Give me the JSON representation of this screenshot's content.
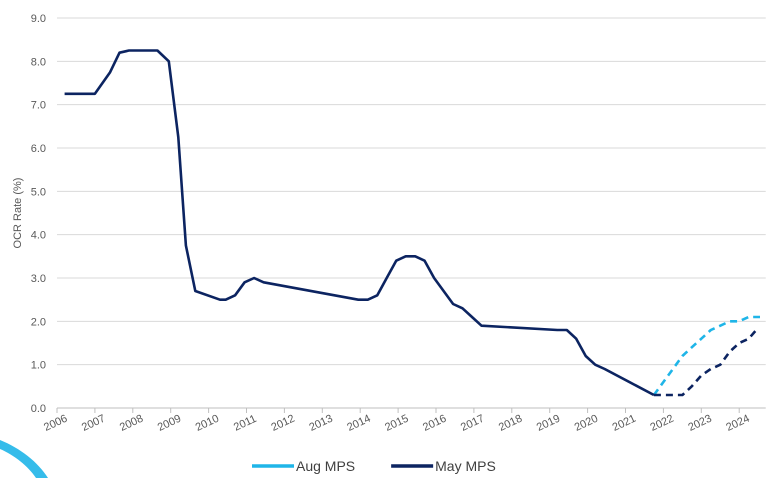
{
  "chart_data": {
    "type": "line",
    "y_label": "OCR Rate (%)",
    "xlim": [
      2006,
      2024.7
    ],
    "xticks": [
      2006,
      2007,
      2008,
      2009,
      2010,
      2011,
      2012,
      2013,
      2014,
      2015,
      2016,
      2017,
      2018,
      2019,
      2020,
      2021,
      2022,
      2023,
      2024
    ],
    "ylim": [
      0,
      9
    ],
    "yticks": [
      {
        "value": 0,
        "label": "0.0"
      },
      {
        "value": 1,
        "label": "1.0"
      },
      {
        "value": 2,
        "label": "2.0"
      },
      {
        "value": 3,
        "label": "3.0"
      },
      {
        "value": 4,
        "label": "4.0"
      },
      {
        "value": 5,
        "label": "5.0"
      },
      {
        "value": 6,
        "label": "6.0"
      },
      {
        "value": 7,
        "label": "7.0"
      },
      {
        "value": 8,
        "label": "8.0"
      },
      {
        "value": 9,
        "label": "9.0"
      }
    ],
    "grid": true,
    "series": [
      {
        "name": "Aug MPS",
        "color": "#1fb5e8",
        "dashed_from_x": 2021.75,
        "x": [
          2021.75,
          2022.0,
          2022.25,
          2022.5,
          2022.75,
          2023.0,
          2023.25,
          2023.5,
          2023.75,
          2024.0,
          2024.25,
          2024.55
        ],
        "values": [
          0.3,
          0.6,
          0.9,
          1.2,
          1.4,
          1.6,
          1.8,
          1.9,
          2.0,
          2.0,
          2.1,
          2.1
        ]
      },
      {
        "name": "May MPS",
        "color": "#0c2461",
        "dashed_from_x": 2021.75,
        "x": [
          2006.2,
          2007.0,
          2007.4,
          2007.65,
          2007.9,
          2008.65,
          2008.95,
          2009.2,
          2009.4,
          2009.65,
          2010.3,
          2010.45,
          2010.7,
          2010.95,
          2011.2,
          2011.45,
          2013.95,
          2014.2,
          2014.45,
          2014.7,
          2014.95,
          2015.2,
          2015.45,
          2015.7,
          2015.95,
          2016.2,
          2016.45,
          2016.7,
          2016.95,
          2017.2,
          2019.2,
          2019.45,
          2019.7,
          2019.95,
          2020.2,
          2020.45,
          2021.75,
          2022.5,
          2022.75,
          2023.0,
          2023.25,
          2023.5,
          2023.75,
          2024.0,
          2024.25,
          2024.45
        ],
        "values": [
          7.25,
          7.25,
          7.75,
          8.2,
          8.25,
          8.25,
          8.0,
          6.25,
          3.75,
          2.7,
          2.5,
          2.5,
          2.6,
          2.9,
          3.0,
          2.9,
          2.5,
          2.5,
          2.6,
          3.0,
          3.4,
          3.5,
          3.5,
          3.4,
          3.0,
          2.7,
          2.4,
          2.3,
          2.1,
          1.9,
          1.8,
          1.8,
          1.6,
          1.2,
          1.0,
          0.9,
          0.3,
          0.3,
          0.5,
          0.75,
          0.9,
          1.0,
          1.3,
          1.5,
          1.6,
          1.8
        ]
      }
    ]
  }
}
